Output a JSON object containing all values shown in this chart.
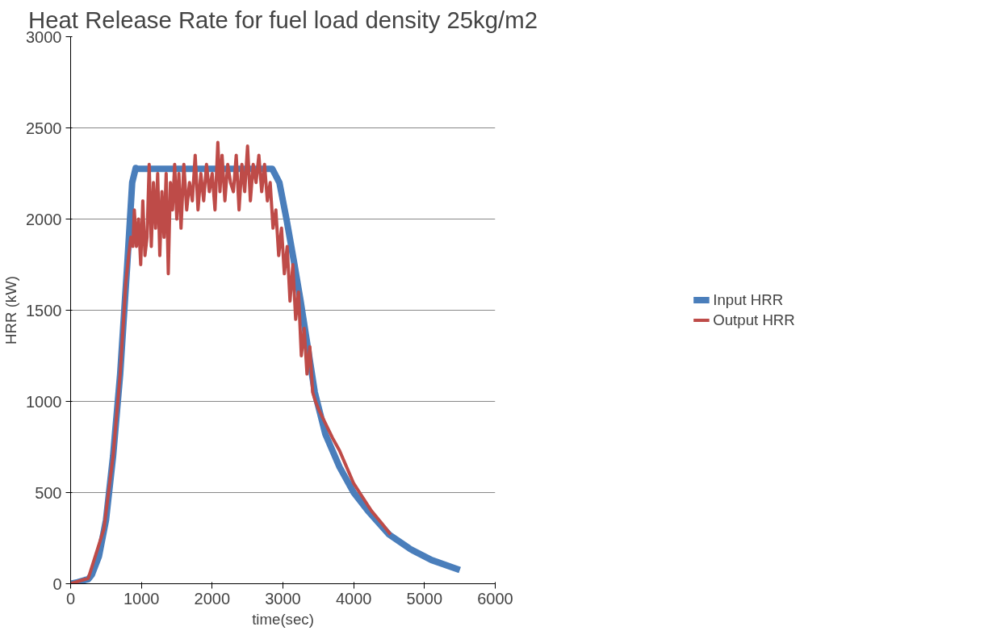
{
  "chart_data": {
    "type": "line",
    "title": "Heat Release Rate for fuel load density 25kg/m2",
    "xlabel": "time(sec)",
    "ylabel": "HRR (kW)",
    "xlim": [
      0,
      6000
    ],
    "xticks": [
      0,
      1000,
      2000,
      3000,
      4000,
      5000,
      6000
    ],
    "ylim": [
      0,
      3000
    ],
    "yticks": [
      0,
      500,
      1000,
      1500,
      2000,
      2500,
      3000
    ],
    "grid": "y",
    "legend": "right",
    "line_style": "solid",
    "marker": "none",
    "series": [
      {
        "name": "Input HRR",
        "color": "#4a7ebb",
        "x": [
          0,
          100,
          200,
          250,
          300,
          400,
          500,
          600,
          700,
          800,
          870,
          920,
          950,
          2850,
          2950,
          3050,
          3150,
          3250,
          3350,
          3450,
          3600,
          3800,
          4000,
          4200,
          4500,
          4800,
          5100,
          5500
        ],
        "values": [
          0,
          8,
          20,
          25,
          50,
          150,
          350,
          700,
          1150,
          1750,
          2200,
          2280,
          2275,
          2275,
          2200,
          2000,
          1780,
          1550,
          1300,
          1050,
          820,
          640,
          500,
          400,
          270,
          190,
          130,
          75
        ]
      },
      {
        "name": "Output HRR",
        "color": "#be4b48",
        "x": [
          0,
          250,
          470,
          600,
          700,
          780,
          820,
          850,
          880,
          900,
          930,
          960,
          990,
          1020,
          1050,
          1080,
          1110,
          1140,
          1170,
          1200,
          1230,
          1260,
          1290,
          1320,
          1350,
          1380,
          1410,
          1440,
          1470,
          1500,
          1530,
          1560,
          1600,
          1640,
          1680,
          1720,
          1760,
          1800,
          1840,
          1880,
          1920,
          1960,
          2000,
          2040,
          2080,
          2110,
          2140,
          2180,
          2220,
          2260,
          2300,
          2340,
          2380,
          2420,
          2460,
          2500,
          2540,
          2580,
          2620,
          2660,
          2700,
          2740,
          2780,
          2820,
          2860,
          2900,
          2940,
          2980,
          3020,
          3060,
          3100,
          3140,
          3180,
          3220,
          3260,
          3300,
          3340,
          3380,
          3420,
          3460,
          3500,
          3600,
          3700,
          3800,
          3900,
          4000,
          4100,
          4250,
          4400,
          4520
        ],
        "values": [
          0,
          30,
          300,
          700,
          1150,
          1650,
          1800,
          1900,
          1850,
          2050,
          1850,
          2000,
          1750,
          2100,
          1800,
          1900,
          2300,
          1850,
          2200,
          1950,
          2250,
          1800,
          2150,
          1900,
          2250,
          1700,
          2200,
          2050,
          2300,
          2000,
          2250,
          1950,
          2300,
          2050,
          2200,
          2100,
          2350,
          2050,
          2250,
          2100,
          2300,
          2150,
          2250,
          2050,
          2420,
          2150,
          2350,
          2100,
          2300,
          2200,
          2150,
          2350,
          2050,
          2300,
          2150,
          2400,
          2100,
          2300,
          2200,
          2350,
          2150,
          2300,
          2100,
          2200,
          1950,
          2050,
          1800,
          1950,
          1700,
          1850,
          1550,
          1750,
          1450,
          1600,
          1250,
          1400,
          1150,
          1300,
          1050,
          1000,
          960,
          880,
          800,
          730,
          640,
          550,
          490,
          400,
          330,
          270
        ]
      }
    ]
  }
}
